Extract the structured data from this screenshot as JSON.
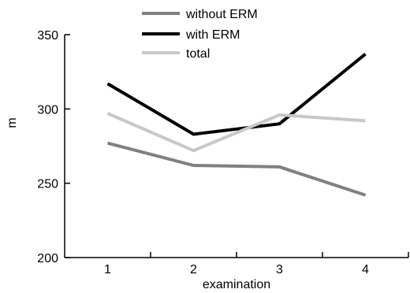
{
  "chart_data": {
    "type": "line",
    "title": "",
    "xlabel": "examination",
    "ylabel": "m",
    "x": [
      1,
      2,
      3,
      4
    ],
    "x_ticks": [
      "1",
      "2",
      "3",
      "4"
    ],
    "y_ticks": [
      "200",
      "250",
      "300",
      "350"
    ],
    "ylim": [
      200,
      350
    ],
    "grid": false,
    "legend_position": "top-center",
    "series": [
      {
        "name": "without ERM",
        "values": [
          277,
          262,
          261,
          242
        ],
        "color": "#808080"
      },
      {
        "name": "with ERM",
        "values": [
          317,
          283,
          290,
          337
        ],
        "color": "#000000"
      },
      {
        "name": "total",
        "values": [
          297,
          272,
          296,
          292
        ],
        "color": "#c8c8c8"
      }
    ]
  }
}
